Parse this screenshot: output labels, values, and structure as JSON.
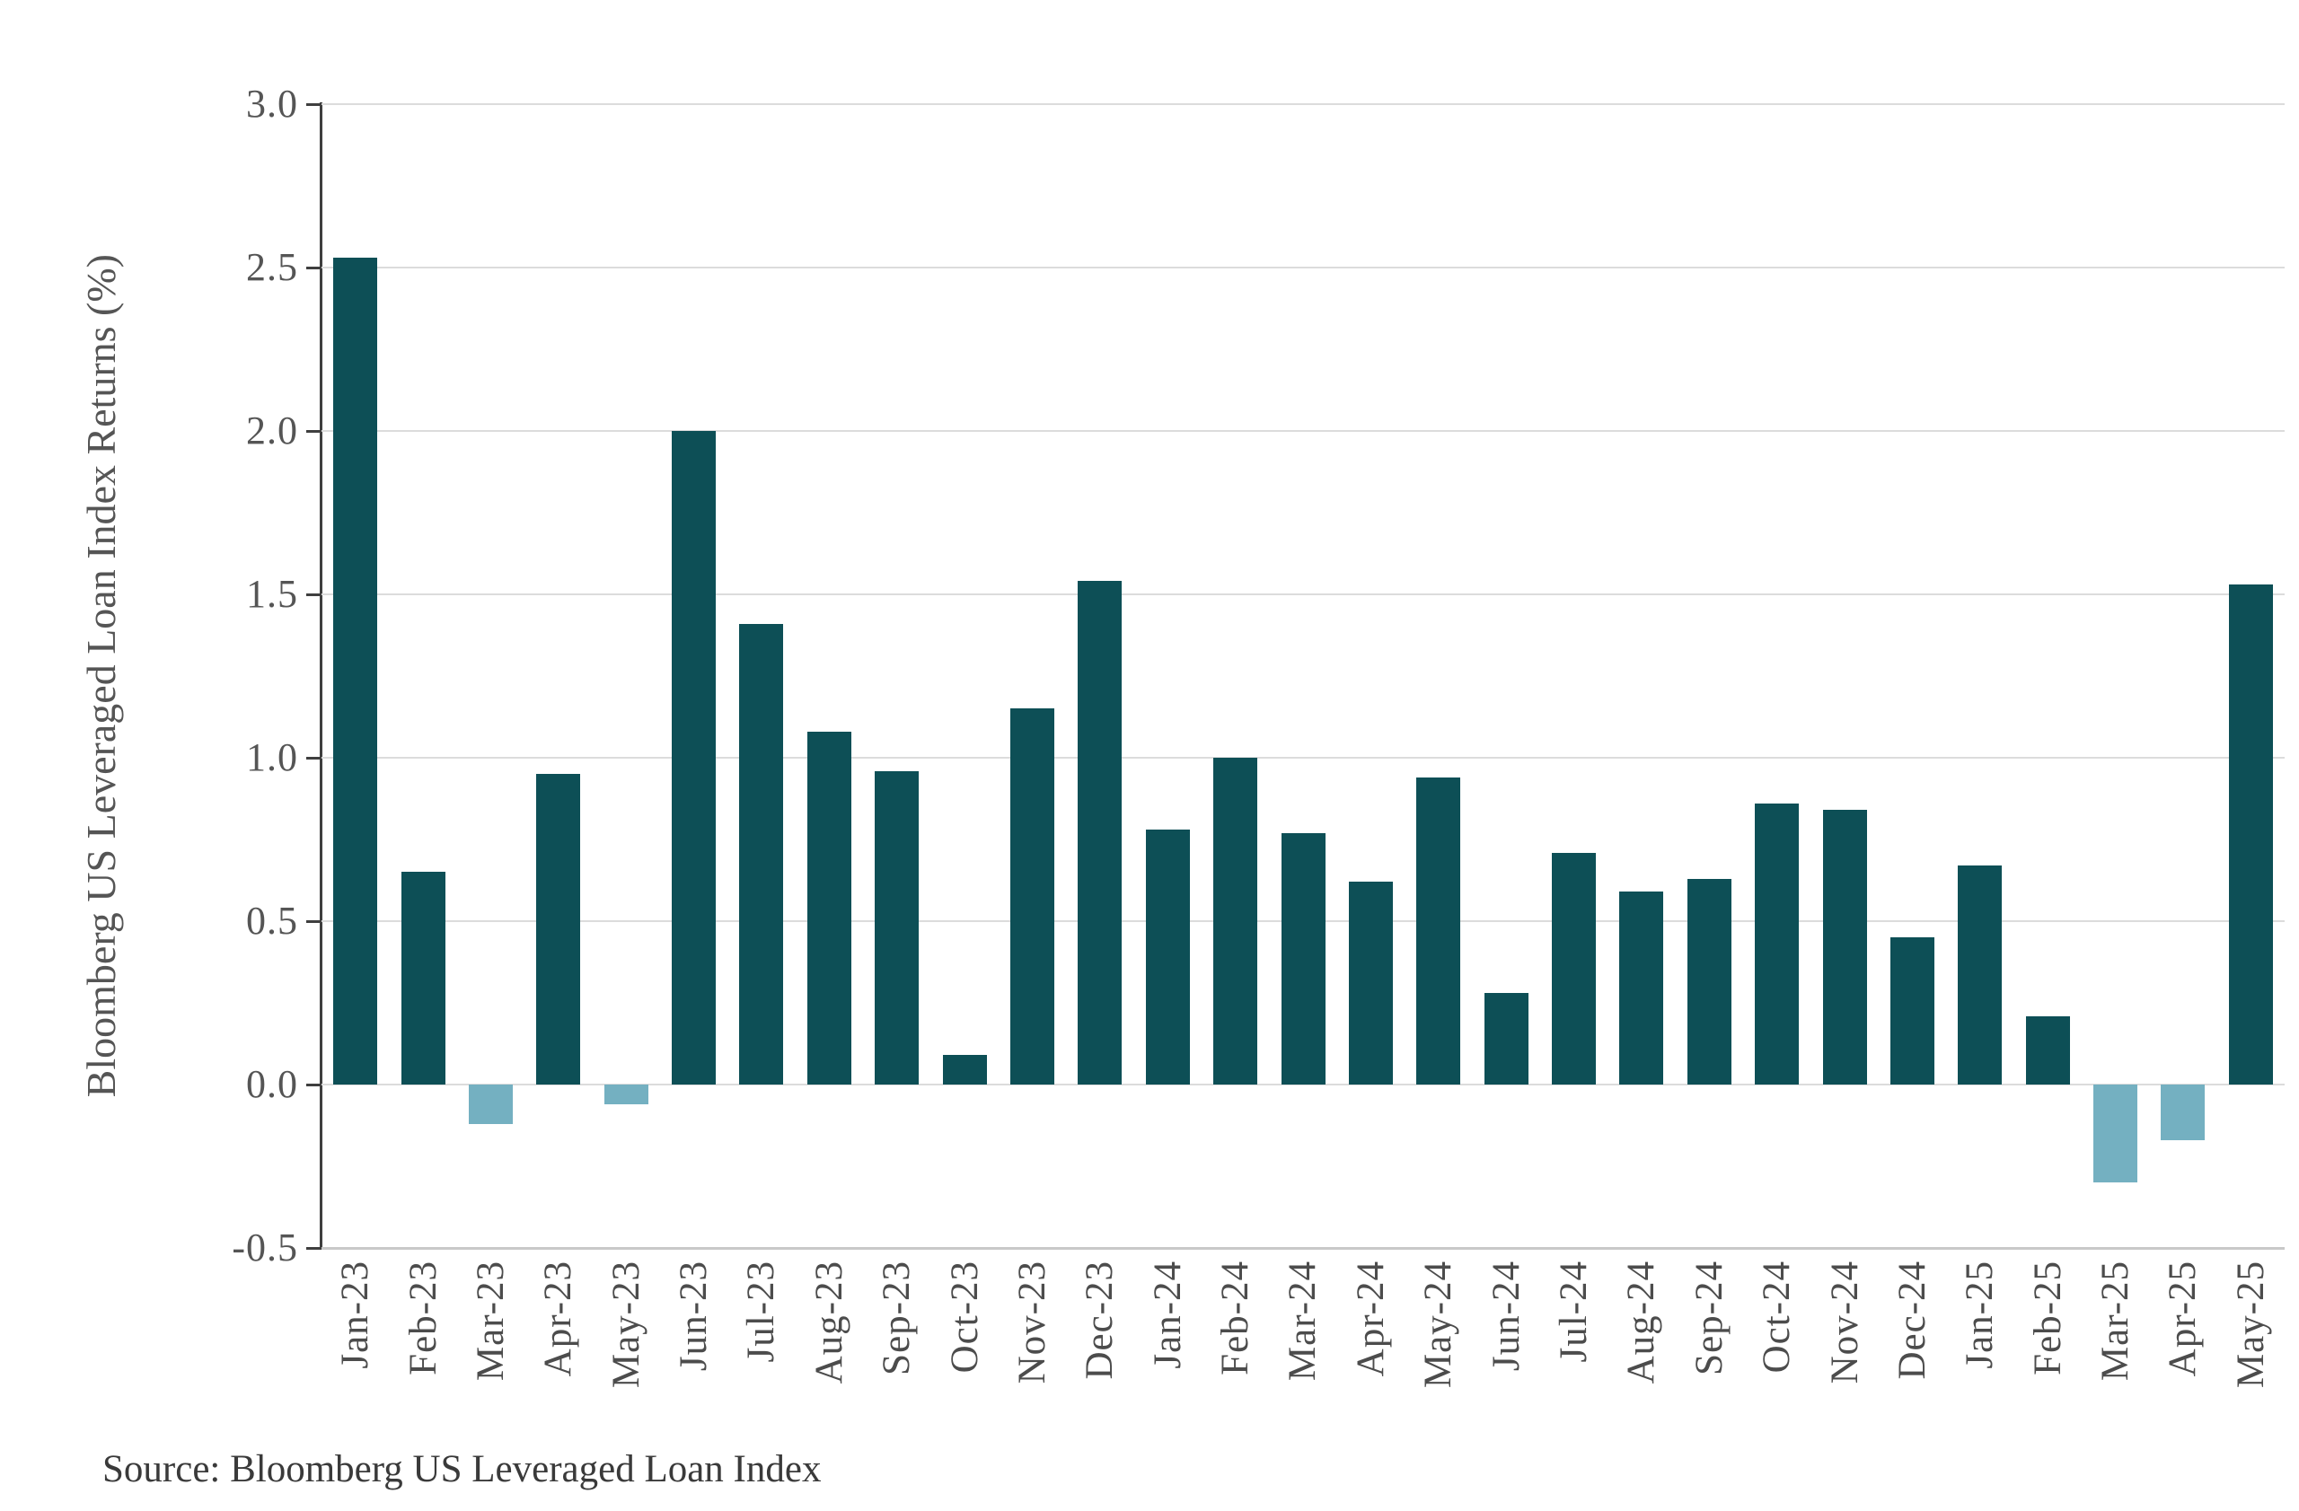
{
  "chart_data": {
    "type": "bar",
    "title": "",
    "xlabel": "",
    "ylabel": "Bloomberg US Leveraged Loan Index Returns (%)",
    "source_note": "Source: Bloomberg US Leveraged Loan Index",
    "categories": [
      "Jan-23",
      "Feb-23",
      "Mar-23",
      "Apr-23",
      "May-23",
      "Jun-23",
      "Jul-23",
      "Aug-23",
      "Sep-23",
      "Oct-23",
      "Nov-23",
      "Dec-23",
      "Jan-24",
      "Feb-24",
      "Mar-24",
      "Apr-24",
      "May-24",
      "Jun-24",
      "Jul-24",
      "Aug-24",
      "Sep-24",
      "Oct-24",
      "Nov-24",
      "Dec-24",
      "Jan-25",
      "Feb-25",
      "Mar-25",
      "Apr-25",
      "May-25"
    ],
    "values": [
      2.53,
      0.65,
      -0.12,
      0.95,
      -0.06,
      2.0,
      1.41,
      1.08,
      0.96,
      0.09,
      1.15,
      1.54,
      0.78,
      1.0,
      0.77,
      0.62,
      0.94,
      0.28,
      0.71,
      0.59,
      0.63,
      0.86,
      0.84,
      0.45,
      0.67,
      0.21,
      -0.3,
      -0.17,
      1.53
    ],
    "ylim": [
      -0.5,
      3.0
    ],
    "ytick_labels": [
      "3.0",
      "2.5",
      "2.0",
      "1.5",
      "1.0",
      "0.5",
      "0.0",
      "-0.5"
    ],
    "ytick_values": [
      3.0,
      2.5,
      2.0,
      1.5,
      1.0,
      0.5,
      0.0,
      -0.5
    ],
    "grid": true,
    "legend_position": "none",
    "colors": {
      "positive_bar": "#0d4f56",
      "negative_bar": "#74b0c1",
      "gridline": "#dcdcdc",
      "axis": "#3f3f3f",
      "tick_label": "#555555",
      "x_label": "#4c4c4c",
      "source_text": "#3a3a3a",
      "background": "#ffffff"
    }
  }
}
